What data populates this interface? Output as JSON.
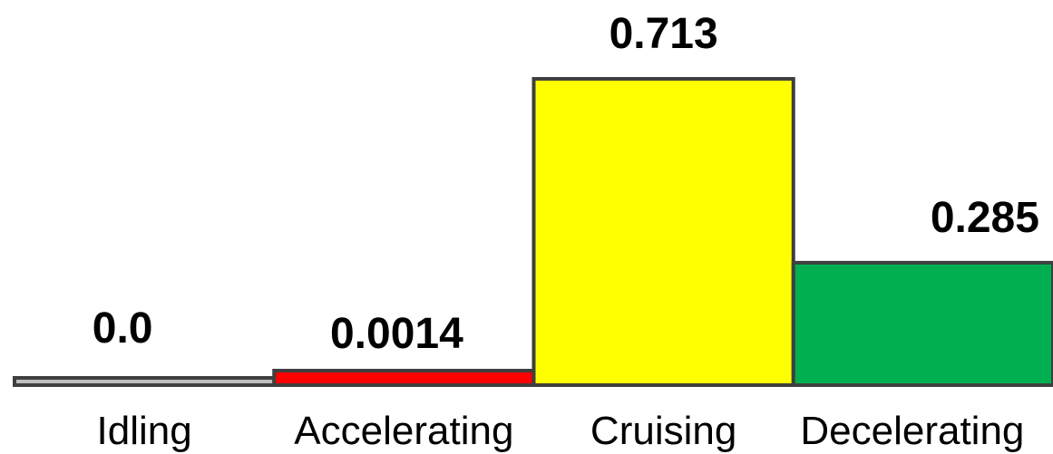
{
  "chart_data": {
    "type": "bar",
    "title": "",
    "xlabel": "",
    "ylabel": "",
    "categories": [
      "Idling",
      "Accelerating",
      "Cruising",
      "Decelerating"
    ],
    "values": [
      0.0,
      0.0014,
      0.713,
      0.285
    ],
    "value_labels": [
      "0.0",
      "0.0014",
      "0.713",
      "0.285"
    ],
    "colors": [
      "#bfbfbf",
      "#ff0000",
      "#ffff00",
      "#00b050"
    ],
    "ylim": [
      0,
      0.713
    ],
    "grid": false,
    "legend": "none"
  }
}
